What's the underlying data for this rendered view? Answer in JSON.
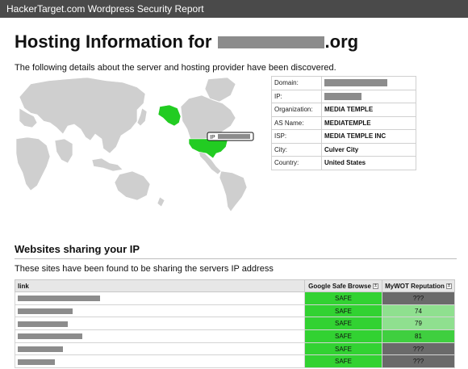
{
  "header": {
    "title": "HackerTarget.com Wordpress Security Report"
  },
  "hosting": {
    "heading_prefix": "Hosting Information for",
    "heading_suffix": ".org",
    "intro": "The following details about the server and hosting provider have been discovered.",
    "map_ip_label": "IP",
    "rows": [
      {
        "label": "Domain:",
        "value": "",
        "redacted": true
      },
      {
        "label": "IP:",
        "value": "",
        "redacted": true
      },
      {
        "label": "Organization:",
        "value": "MEDIA TEMPLE",
        "redacted": false
      },
      {
        "label": "AS Name:",
        "value": "MEDIATEMPLE",
        "redacted": false
      },
      {
        "label": "ISP:",
        "value": "MEDIA TEMPLE INC",
        "redacted": false
      },
      {
        "label": "City:",
        "value": "Culver City",
        "redacted": false
      },
      {
        "label": "Country:",
        "value": "United States",
        "redacted": false
      }
    ]
  },
  "sharing": {
    "heading": "Websites sharing your IP",
    "subtext": "These sites have been found to be sharing the servers IP address",
    "columns": {
      "link": "link",
      "gsb": "Google Safe Browse",
      "wot": "MyWOT Reputation",
      "sort_glyph": "±"
    },
    "rows": [
      {
        "safe": "SAFE",
        "reputation": "???",
        "rep_color": "#6a6a6a"
      },
      {
        "safe": "SAFE",
        "reputation": "74",
        "rep_color": "#8fe08f"
      },
      {
        "safe": "SAFE",
        "reputation": "79",
        "rep_color": "#8fe08f"
      },
      {
        "safe": "SAFE",
        "reputation": "81",
        "rep_color": "#3fcf3f"
      },
      {
        "safe": "SAFE",
        "reputation": "???",
        "rep_color": "#6a6a6a"
      },
      {
        "safe": "SAFE",
        "reputation": "???",
        "rep_color": "#6a6a6a"
      }
    ],
    "safe_color": "#32d232"
  },
  "colors": {
    "topbar": "#4a4a4a",
    "map_land": "#cfcfcf",
    "map_highlight": "#22cc22",
    "redaction": "#8c8c8c"
  }
}
